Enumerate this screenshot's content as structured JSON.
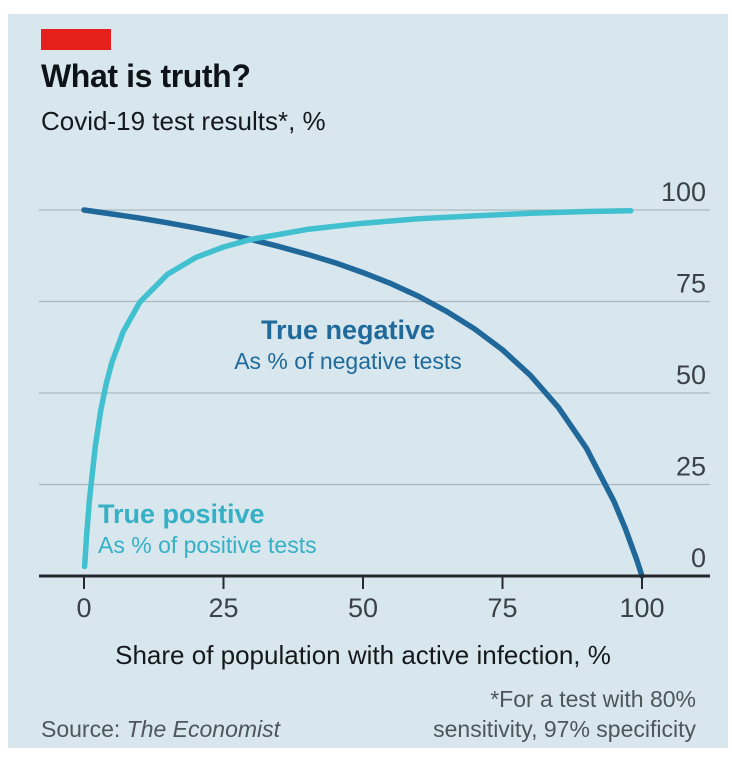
{
  "header": {
    "title": "What is truth?",
    "subtitle": "Covid-19 test results*, %"
  },
  "colors": {
    "background": "#d8e7ee",
    "brand_red": "#e5201a",
    "true_negative": "#20689a",
    "true_positive": "#41c0cf",
    "axis": "#24292e",
    "gridline": "#a9b8c0",
    "tick_label": "#3b4247",
    "footnote_text": "#4e565b"
  },
  "chart_data": {
    "type": "line",
    "title": "What is truth?",
    "subtitle": "Covid-19 test results*, %",
    "xlabel": "Share of population with active infection, %",
    "ylabel": "%",
    "xlim": [
      0,
      100
    ],
    "ylim": [
      0,
      100
    ],
    "x_ticks": [
      0,
      25,
      50,
      75,
      100
    ],
    "y_ticks": [
      0,
      25,
      50,
      75,
      100
    ],
    "grid": "horizontal gridlines at 25, 50, 75, 100; y tick labels on right side above lines",
    "legend_position": "inline curve labels",
    "series": [
      {
        "name": "True negative",
        "sublabel": "As % of negative tests",
        "color": "#20689a",
        "x": [
          0,
          5,
          10,
          15,
          20,
          25,
          30,
          35,
          40,
          45,
          50,
          55,
          60,
          65,
          70,
          75,
          80,
          85,
          90,
          95,
          97,
          99,
          100
        ],
        "y": [
          100,
          98.9,
          97.8,
          96.5,
          95.1,
          93.6,
          91.9,
          90,
          87.9,
          85.6,
          82.9,
          79.9,
          76.4,
          72.3,
          67.5,
          61.8,
          54.8,
          46.1,
          35,
          20.3,
          13,
          4.7,
          0
        ]
      },
      {
        "name": "True positive",
        "sublabel": "As % of positive tests",
        "color": "#41c0cf",
        "x": [
          0.1,
          0.5,
          1,
          2,
          3,
          4,
          5,
          7,
          10,
          15,
          20,
          25,
          30,
          40,
          50,
          60,
          70,
          80,
          90,
          98
        ],
        "y": [
          2.6,
          11.8,
          21.2,
          35.2,
          45.2,
          52.6,
          58.4,
          66.7,
          74.8,
          82.5,
          87,
          89.9,
          92,
          94.7,
          96.4,
          97.6,
          98.4,
          99.1,
          99.6,
          99.8
        ]
      }
    ]
  },
  "footnote": {
    "line1": "*For a test with 80%",
    "line2": "sensitivity, 97% specificity"
  },
  "source": {
    "prefix": "Source:",
    "name": "The Economist"
  }
}
